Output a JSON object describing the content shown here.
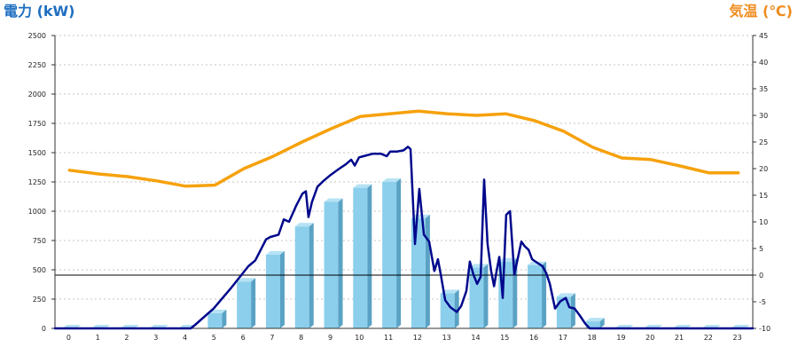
{
  "chart_data": {
    "type": "bar",
    "ylabel_left": "電力 (kW)",
    "ylabel_right": "気温 (℃)",
    "categories": [
      "0",
      "1",
      "2",
      "3",
      "4",
      "5",
      "6",
      "7",
      "8",
      "9",
      "10",
      "11",
      "12",
      "13",
      "14",
      "15",
      "16",
      "17",
      "18",
      "19",
      "20",
      "21",
      "22",
      "23"
    ],
    "y_left": {
      "range": [
        0,
        2500
      ],
      "ticks": [
        0,
        250,
        500,
        750,
        1000,
        1250,
        1500,
        1750,
        2000,
        2250,
        2500
      ]
    },
    "y_right": {
      "range": [
        -10,
        45
      ],
      "ticks": [
        -10,
        -5,
        0,
        5,
        10,
        15,
        20,
        25,
        30,
        35,
        40,
        45
      ]
    },
    "grid": true,
    "legend": false,
    "reference_lines": [
      {
        "axis": "right",
        "value": 0
      }
    ],
    "series": [
      {
        "type": "bar",
        "axis": "left",
        "values": [
          0,
          0,
          0,
          0,
          0,
          130,
          400,
          630,
          870,
          1080,
          1200,
          1250,
          940,
          300,
          520,
          570,
          540,
          270,
          60,
          0,
          0,
          0,
          0,
          0
        ]
      },
      {
        "type": "line",
        "axis": "right",
        "values": [
          19.7,
          19.0,
          18.5,
          17.7,
          16.7,
          16.9,
          20.0,
          22.3,
          25.0,
          27.5,
          29.8,
          30.3,
          30.8,
          30.3,
          30.0,
          30.3,
          29.0,
          27.0,
          24.0,
          22.0,
          21.7,
          20.5,
          19.2,
          19.2
        ]
      },
      {
        "type": "line",
        "axis": "left",
        "x": [
          0,
          4.67,
          4.82,
          5.46,
          6.04,
          6.65,
          6.89,
          7.26,
          7.41,
          7.69,
          7.87,
          8.05,
          8.3,
          8.51,
          8.63,
          8.72,
          8.84,
          9.03,
          9.24,
          9.48,
          9.76,
          10.0,
          10.19,
          10.31,
          10.46,
          10.61,
          10.92,
          11.22,
          11.41,
          11.53,
          11.77,
          11.99,
          12.14,
          12.23,
          12.38,
          12.53,
          12.69,
          12.87,
          13.05,
          13.17,
          13.27,
          13.42,
          13.6,
          13.82,
          13.97,
          14.15,
          14.27,
          14.39,
          14.52,
          14.64,
          14.76,
          14.88,
          15.0,
          15.1,
          15.19,
          15.28,
          15.4,
          15.52,
          15.65,
          15.8,
          16.04,
          16.16,
          16.29,
          16.41,
          16.59,
          16.77,
          16.9,
          17.02,
          17.2,
          17.38,
          17.57,
          17.69,
          17.87,
          18.05,
          18.24,
          18.39,
          24
        ],
        "values": [
          0,
          0,
          30,
          170,
          340,
          530,
          580,
          760,
          780,
          800,
          930,
          910,
          1050,
          1150,
          1170,
          950,
          1080,
          1210,
          1260,
          1310,
          1360,
          1400,
          1440,
          1390,
          1460,
          1470,
          1490,
          1490,
          1470,
          1510,
          1510,
          1520,
          1550,
          1530,
          720,
          1190,
          800,
          740,
          490,
          590,
          460,
          240,
          180,
          140,
          190,
          320,
          570,
          460,
          380,
          440,
          1270,
          720,
          490,
          360,
          490,
          610,
          260,
          970,
          1000,
          460,
          740,
          700,
          670,
          590,
          560,
          530,
          470,
          380,
          170,
          230,
          260,
          180,
          170,
          110,
          40,
          0,
          0
        ]
      }
    ],
    "colors": {
      "left_axis_title": "#1e6fc1",
      "right_axis_title": "#f08c1e",
      "bar_front": "#8ccfec",
      "bar_side": "#5aa2c4",
      "bar_top": "#b6e2f4",
      "temperature_line": "#f6a10c",
      "power_line": "#00088c",
      "grid": "#c4c4c4",
      "axis": "#333333",
      "reference_line": "#000000"
    }
  }
}
